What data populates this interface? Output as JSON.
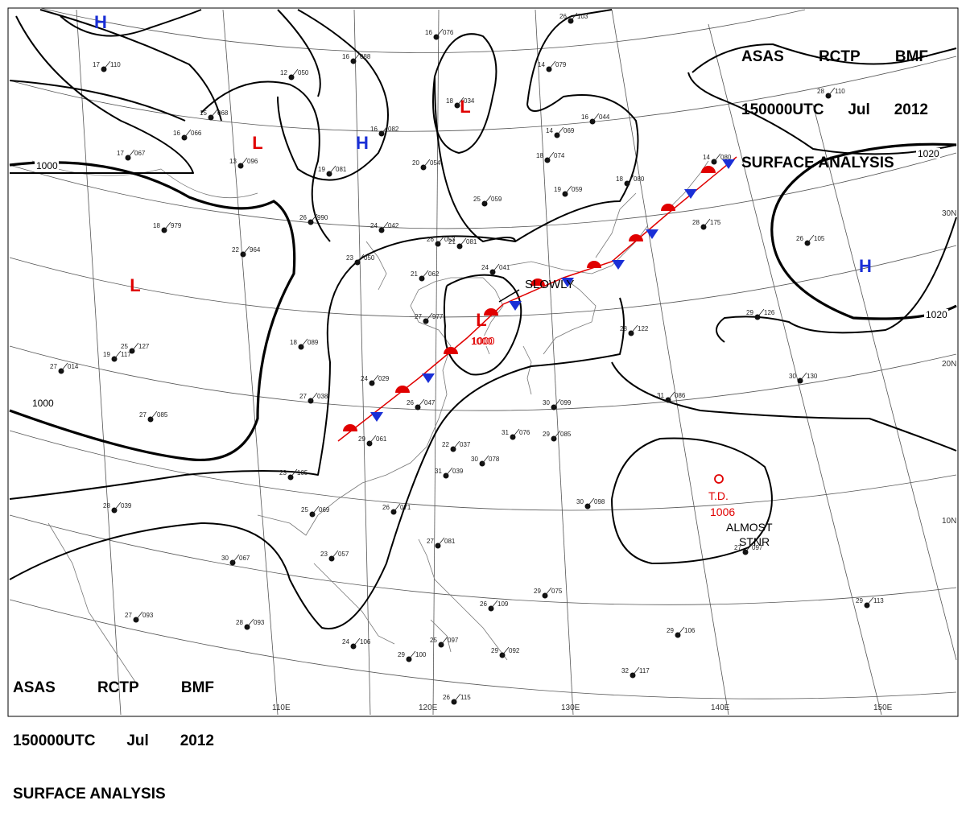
{
  "header": {
    "agency": "ASAS",
    "station": "RCTP",
    "office": "BMF",
    "time": "150000UTC",
    "month": "Jul",
    "year": "2012",
    "product": "SURFACE ANALYSIS"
  },
  "lat_labels": [
    "30N",
    "20N",
    "10N"
  ],
  "lon_labels": [
    "110E",
    "120E",
    "130E",
    "140E",
    "150E"
  ],
  "isobar_labels": [
    "1000",
    "1000",
    "1000",
    "1020",
    "1020"
  ],
  "pressure_centers": [
    {
      "type": "H",
      "color": "#1a2fd6"
    },
    {
      "type": "H",
      "color": "#1a2fd6"
    },
    {
      "type": "H",
      "color": "#1a2fd6"
    },
    {
      "type": "L",
      "color": "#e00000"
    },
    {
      "type": "L",
      "color": "#e00000"
    },
    {
      "type": "L",
      "color": "#e00000"
    },
    {
      "type": "L",
      "color": "#e00000",
      "value": "1000"
    }
  ],
  "movement_label": "SLOWLY",
  "tropical_depression": {
    "label": "T.D.",
    "pressure": "1006",
    "movement": [
      "ALMOST",
      "STNR"
    ],
    "color": "#e00000"
  },
  "station_reports": [
    "17 110",
    "16 066",
    "17 067",
    "15 068",
    "13 096",
    "16 088",
    "12 050",
    "16 082",
    "19 081",
    "20 054",
    "18 034",
    "16 076",
    "14 069",
    "18 074",
    "14 079",
    "16 044",
    "14 080",
    "19 059",
    "18 080",
    "25 059",
    "26 990",
    "18 979",
    "22 964",
    "24 042",
    "23 050",
    "21 062",
    "26 053",
    "21 081",
    "24 041",
    "18 089",
    "24 029",
    "26 047",
    "27 038",
    "27 085",
    "27 014",
    "27 977",
    "22 037",
    "29 061",
    "31 039",
    "30 078",
    "26 071",
    "31 076",
    "29 085",
    "30 099",
    "31 086",
    "28 122",
    "29 126",
    "30 130",
    "28 175",
    "26 105",
    "23 105",
    "28 039",
    "25 069",
    "23 057",
    "30 067",
    "27 081",
    "28 093",
    "27 093",
    "24 106",
    "29 100",
    "25 097",
    "26 115",
    "26 109",
    "29 092",
    "29 075",
    "29 106",
    "32 117",
    "29 113",
    "30 098",
    "27 097",
    "28 110",
    "26 103",
    "19 117",
    "25 127"
  ]
}
